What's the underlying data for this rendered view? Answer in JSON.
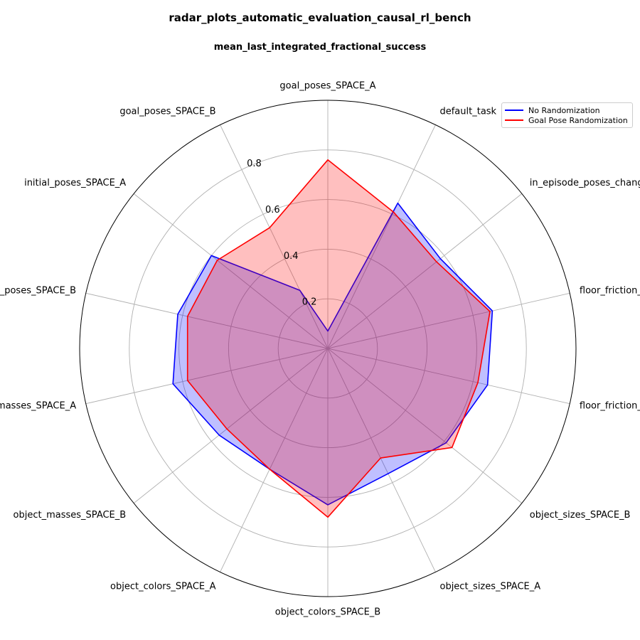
{
  "chart_data": {
    "type": "radar",
    "title": "radar_plots_automatic_evaluation_causal_rl_bench",
    "subtitle": "mean_last_integrated_fractional_success",
    "categories": [
      "goal_poses_SPACE_A",
      "default_task",
      "in_episode_poses_change",
      "floor_friction_SPACE_B",
      "floor_friction_SPACE_A",
      "object_sizes_SPACE_B",
      "object_sizes_SPACE_A",
      "object_colors_SPACE_B",
      "object_colors_SPACE_A",
      "object_masses_SPACE_B",
      "object_masses_SPACE_A",
      "initial_poses_SPACE_B",
      "initial_poses_SPACE_A",
      "goal_poses_SPACE_B"
    ],
    "radial_ticks": [
      0.2,
      0.4,
      0.6,
      0.8
    ],
    "radial_tick_labels": [
      "0.2",
      "0.4",
      "0.6",
      "0.8"
    ],
    "rlim": [
      0,
      1.0
    ],
    "series": [
      {
        "name": "No Randomization",
        "color": "#0000ff",
        "fill": "#0000ff",
        "values": [
          0.07,
          0.65,
          0.58,
          0.68,
          0.66,
          0.61,
          0.56,
          0.63,
          0.54,
          0.56,
          0.64,
          0.62,
          0.6,
          0.26
        ]
      },
      {
        "name": "Goal Pose Randomization",
        "color": "#ff0000",
        "fill": "#ff0000",
        "values": [
          0.76,
          0.61,
          0.56,
          0.67,
          0.62,
          0.64,
          0.49,
          0.68,
          0.54,
          0.52,
          0.58,
          0.58,
          0.57,
          0.54
        ]
      }
    ],
    "legend_position": "top-right"
  }
}
